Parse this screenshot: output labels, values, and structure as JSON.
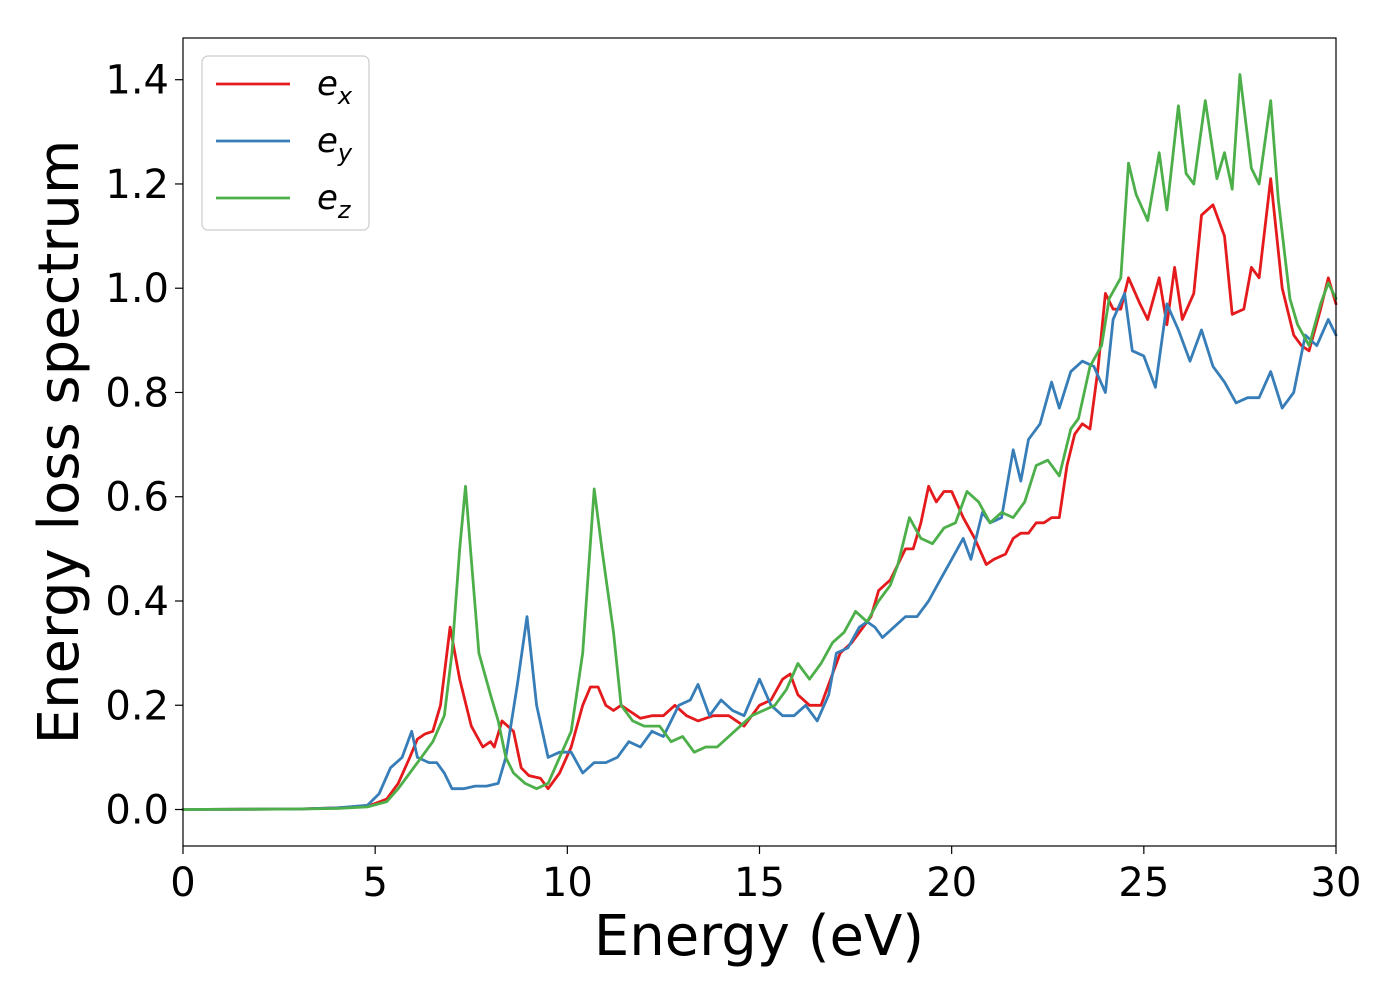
{
  "chart_data": {
    "type": "line",
    "title": "",
    "xlabel": "Energy (eV)",
    "ylabel": "Energy loss spectrum",
    "xlim": [
      0,
      30
    ],
    "ylim": [
      -0.07,
      1.48
    ],
    "xticks": [
      0,
      5,
      10,
      15,
      20,
      25,
      30
    ],
    "xtick_labels": [
      "0",
      "5",
      "10",
      "15",
      "20",
      "25",
      "30"
    ],
    "yticks": [
      0.0,
      0.2,
      0.4,
      0.6,
      0.8,
      1.0,
      1.2,
      1.4
    ],
    "ytick_labels": [
      "0.0",
      "0.2",
      "0.4",
      "0.6",
      "0.8",
      "1.0",
      "1.2",
      "1.4"
    ],
    "grid": false,
    "legend_position": "top-left",
    "series": [
      {
        "name": "e_x",
        "legend_base": "e",
        "legend_sub": "x",
        "color": "#e41a1c",
        "points": [
          [
            0,
            0
          ],
          [
            3,
            0.001
          ],
          [
            4,
            0.003
          ],
          [
            4.8,
            0.006
          ],
          [
            5.3,
            0.02
          ],
          [
            5.6,
            0.05
          ],
          [
            5.9,
            0.1
          ],
          [
            6.1,
            0.135
          ],
          [
            6.3,
            0.145
          ],
          [
            6.5,
            0.15
          ],
          [
            6.7,
            0.2
          ],
          [
            6.95,
            0.35
          ],
          [
            7.2,
            0.25
          ],
          [
            7.5,
            0.16
          ],
          [
            7.8,
            0.12
          ],
          [
            8.0,
            0.13
          ],
          [
            8.1,
            0.12
          ],
          [
            8.3,
            0.17
          ],
          [
            8.6,
            0.15
          ],
          [
            8.8,
            0.08
          ],
          [
            9.0,
            0.065
          ],
          [
            9.3,
            0.06
          ],
          [
            9.5,
            0.04
          ],
          [
            9.8,
            0.07
          ],
          [
            10.1,
            0.12
          ],
          [
            10.4,
            0.2
          ],
          [
            10.6,
            0.235
          ],
          [
            10.8,
            0.235
          ],
          [
            11.0,
            0.2
          ],
          [
            11.2,
            0.19
          ],
          [
            11.4,
            0.2
          ],
          [
            11.6,
            0.19
          ],
          [
            11.9,
            0.175
          ],
          [
            12.2,
            0.18
          ],
          [
            12.5,
            0.18
          ],
          [
            12.8,
            0.2
          ],
          [
            13.1,
            0.18
          ],
          [
            13.4,
            0.17
          ],
          [
            13.8,
            0.18
          ],
          [
            14.2,
            0.18
          ],
          [
            14.6,
            0.16
          ],
          [
            15.0,
            0.2
          ],
          [
            15.3,
            0.21
          ],
          [
            15.6,
            0.25
          ],
          [
            15.8,
            0.26
          ],
          [
            16.0,
            0.22
          ],
          [
            16.3,
            0.2
          ],
          [
            16.6,
            0.2
          ],
          [
            16.9,
            0.26
          ],
          [
            17.1,
            0.3
          ],
          [
            17.4,
            0.32
          ],
          [
            17.6,
            0.34
          ],
          [
            17.9,
            0.37
          ],
          [
            18.1,
            0.42
          ],
          [
            18.4,
            0.44
          ],
          [
            18.6,
            0.47
          ],
          [
            18.8,
            0.5
          ],
          [
            19.0,
            0.5
          ],
          [
            19.2,
            0.55
          ],
          [
            19.4,
            0.62
          ],
          [
            19.6,
            0.59
          ],
          [
            19.8,
            0.61
          ],
          [
            20.0,
            0.61
          ],
          [
            20.3,
            0.56
          ],
          [
            20.6,
            0.52
          ],
          [
            20.9,
            0.47
          ],
          [
            21.1,
            0.48
          ],
          [
            21.4,
            0.49
          ],
          [
            21.6,
            0.52
          ],
          [
            21.8,
            0.53
          ],
          [
            22.0,
            0.53
          ],
          [
            22.2,
            0.55
          ],
          [
            22.4,
            0.55
          ],
          [
            22.6,
            0.56
          ],
          [
            22.8,
            0.56
          ],
          [
            23.0,
            0.66
          ],
          [
            23.2,
            0.72
          ],
          [
            23.4,
            0.74
          ],
          [
            23.6,
            0.73
          ],
          [
            23.8,
            0.84
          ],
          [
            24.0,
            0.99
          ],
          [
            24.2,
            0.96
          ],
          [
            24.4,
            0.96
          ],
          [
            24.6,
            1.02
          ],
          [
            24.9,
            0.97
          ],
          [
            25.1,
            0.94
          ],
          [
            25.4,
            1.02
          ],
          [
            25.6,
            0.93
          ],
          [
            25.8,
            1.04
          ],
          [
            26.0,
            0.94
          ],
          [
            26.3,
            0.99
          ],
          [
            26.5,
            1.14
          ],
          [
            26.8,
            1.16
          ],
          [
            27.1,
            1.1
          ],
          [
            27.3,
            0.95
          ],
          [
            27.6,
            0.96
          ],
          [
            27.8,
            1.04
          ],
          [
            28.0,
            1.02
          ],
          [
            28.3,
            1.21
          ],
          [
            28.6,
            1.0
          ],
          [
            28.9,
            0.91
          ],
          [
            29.1,
            0.89
          ],
          [
            29.3,
            0.88
          ],
          [
            29.6,
            0.96
          ],
          [
            29.8,
            1.02
          ],
          [
            30.0,
            0.97
          ]
        ]
      },
      {
        "name": "e_y",
        "legend_base": "e",
        "legend_sub": "y",
        "color": "#377eb8",
        "points": [
          [
            0,
            0
          ],
          [
            3,
            0.001
          ],
          [
            4,
            0.003
          ],
          [
            4.8,
            0.008
          ],
          [
            5.1,
            0.03
          ],
          [
            5.4,
            0.08
          ],
          [
            5.7,
            0.1
          ],
          [
            5.95,
            0.15
          ],
          [
            6.1,
            0.1
          ],
          [
            6.4,
            0.09
          ],
          [
            6.6,
            0.09
          ],
          [
            6.8,
            0.07
          ],
          [
            7.0,
            0.04
          ],
          [
            7.3,
            0.04
          ],
          [
            7.6,
            0.045
          ],
          [
            7.9,
            0.045
          ],
          [
            8.2,
            0.05
          ],
          [
            8.4,
            0.1
          ],
          [
            8.7,
            0.24
          ],
          [
            8.95,
            0.37
          ],
          [
            9.2,
            0.2
          ],
          [
            9.5,
            0.1
          ],
          [
            9.8,
            0.11
          ],
          [
            10.1,
            0.11
          ],
          [
            10.4,
            0.07
          ],
          [
            10.7,
            0.09
          ],
          [
            11.0,
            0.09
          ],
          [
            11.3,
            0.1
          ],
          [
            11.6,
            0.13
          ],
          [
            11.9,
            0.12
          ],
          [
            12.2,
            0.15
          ],
          [
            12.5,
            0.14
          ],
          [
            12.9,
            0.2
          ],
          [
            13.2,
            0.21
          ],
          [
            13.4,
            0.24
          ],
          [
            13.7,
            0.18
          ],
          [
            14.0,
            0.21
          ],
          [
            14.3,
            0.19
          ],
          [
            14.6,
            0.18
          ],
          [
            15.0,
            0.25
          ],
          [
            15.3,
            0.2
          ],
          [
            15.6,
            0.18
          ],
          [
            15.9,
            0.18
          ],
          [
            16.2,
            0.2
          ],
          [
            16.5,
            0.17
          ],
          [
            16.8,
            0.22
          ],
          [
            17.0,
            0.3
          ],
          [
            17.3,
            0.31
          ],
          [
            17.6,
            0.35
          ],
          [
            17.8,
            0.36
          ],
          [
            18.0,
            0.35
          ],
          [
            18.2,
            0.33
          ],
          [
            18.5,
            0.35
          ],
          [
            18.8,
            0.37
          ],
          [
            19.1,
            0.37
          ],
          [
            19.4,
            0.4
          ],
          [
            19.7,
            0.44
          ],
          [
            20.0,
            0.48
          ],
          [
            20.3,
            0.52
          ],
          [
            20.5,
            0.48
          ],
          [
            20.8,
            0.57
          ],
          [
            21.0,
            0.55
          ],
          [
            21.3,
            0.56
          ],
          [
            21.6,
            0.69
          ],
          [
            21.8,
            0.63
          ],
          [
            22.0,
            0.71
          ],
          [
            22.3,
            0.74
          ],
          [
            22.6,
            0.82
          ],
          [
            22.8,
            0.77
          ],
          [
            23.1,
            0.84
          ],
          [
            23.4,
            0.86
          ],
          [
            23.7,
            0.85
          ],
          [
            24.0,
            0.8
          ],
          [
            24.2,
            0.94
          ],
          [
            24.5,
            0.99
          ],
          [
            24.7,
            0.88
          ],
          [
            25.0,
            0.87
          ],
          [
            25.3,
            0.81
          ],
          [
            25.6,
            0.97
          ],
          [
            25.9,
            0.92
          ],
          [
            26.2,
            0.86
          ],
          [
            26.5,
            0.92
          ],
          [
            26.8,
            0.85
          ],
          [
            27.1,
            0.82
          ],
          [
            27.4,
            0.78
          ],
          [
            27.7,
            0.79
          ],
          [
            28.0,
            0.79
          ],
          [
            28.3,
            0.84
          ],
          [
            28.6,
            0.77
          ],
          [
            28.9,
            0.8
          ],
          [
            29.2,
            0.91
          ],
          [
            29.5,
            0.89
          ],
          [
            29.8,
            0.94
          ],
          [
            30.0,
            0.91
          ]
        ]
      },
      {
        "name": "e_z",
        "legend_base": "e",
        "legend_sub": "z",
        "color": "#4daf4a",
        "points": [
          [
            0,
            0
          ],
          [
            3,
            0.001
          ],
          [
            4,
            0.002
          ],
          [
            4.8,
            0.005
          ],
          [
            5.3,
            0.015
          ],
          [
            5.6,
            0.04
          ],
          [
            5.9,
            0.07
          ],
          [
            6.2,
            0.1
          ],
          [
            6.5,
            0.13
          ],
          [
            6.8,
            0.18
          ],
          [
            7.0,
            0.3
          ],
          [
            7.2,
            0.5
          ],
          [
            7.35,
            0.62
          ],
          [
            7.5,
            0.48
          ],
          [
            7.7,
            0.3
          ],
          [
            8.0,
            0.22
          ],
          [
            8.2,
            0.17
          ],
          [
            8.4,
            0.1
          ],
          [
            8.6,
            0.07
          ],
          [
            8.9,
            0.05
          ],
          [
            9.2,
            0.04
          ],
          [
            9.5,
            0.05
          ],
          [
            9.8,
            0.1
          ],
          [
            10.1,
            0.15
          ],
          [
            10.4,
            0.3
          ],
          [
            10.7,
            0.615
          ],
          [
            10.9,
            0.5
          ],
          [
            11.2,
            0.34
          ],
          [
            11.4,
            0.2
          ],
          [
            11.7,
            0.17
          ],
          [
            12.0,
            0.16
          ],
          [
            12.4,
            0.16
          ],
          [
            12.7,
            0.13
          ],
          [
            13.0,
            0.14
          ],
          [
            13.3,
            0.11
          ],
          [
            13.6,
            0.12
          ],
          [
            13.9,
            0.12
          ],
          [
            14.2,
            0.14
          ],
          [
            14.5,
            0.16
          ],
          [
            14.8,
            0.18
          ],
          [
            15.1,
            0.19
          ],
          [
            15.4,
            0.2
          ],
          [
            15.7,
            0.23
          ],
          [
            16.0,
            0.28
          ],
          [
            16.3,
            0.25
          ],
          [
            16.6,
            0.28
          ],
          [
            16.9,
            0.32
          ],
          [
            17.2,
            0.34
          ],
          [
            17.5,
            0.38
          ],
          [
            17.8,
            0.36
          ],
          [
            18.1,
            0.4
          ],
          [
            18.4,
            0.43
          ],
          [
            18.6,
            0.47
          ],
          [
            18.9,
            0.56
          ],
          [
            19.2,
            0.52
          ],
          [
            19.5,
            0.51
          ],
          [
            19.8,
            0.54
          ],
          [
            20.1,
            0.55
          ],
          [
            20.4,
            0.61
          ],
          [
            20.7,
            0.59
          ],
          [
            21.0,
            0.55
          ],
          [
            21.3,
            0.57
          ],
          [
            21.6,
            0.56
          ],
          [
            21.9,
            0.59
          ],
          [
            22.2,
            0.66
          ],
          [
            22.5,
            0.67
          ],
          [
            22.8,
            0.64
          ],
          [
            23.1,
            0.73
          ],
          [
            23.3,
            0.75
          ],
          [
            23.6,
            0.85
          ],
          [
            23.9,
            0.89
          ],
          [
            24.1,
            0.98
          ],
          [
            24.4,
            1.02
          ],
          [
            24.6,
            1.24
          ],
          [
            24.8,
            1.18
          ],
          [
            25.1,
            1.13
          ],
          [
            25.4,
            1.26
          ],
          [
            25.6,
            1.15
          ],
          [
            25.9,
            1.35
          ],
          [
            26.1,
            1.22
          ],
          [
            26.3,
            1.2
          ],
          [
            26.6,
            1.36
          ],
          [
            26.9,
            1.21
          ],
          [
            27.1,
            1.26
          ],
          [
            27.3,
            1.19
          ],
          [
            27.5,
            1.41
          ],
          [
            27.8,
            1.23
          ],
          [
            28.0,
            1.2
          ],
          [
            28.3,
            1.36
          ],
          [
            28.5,
            1.17
          ],
          [
            28.8,
            0.98
          ],
          [
            29.0,
            0.93
          ],
          [
            29.3,
            0.89
          ],
          [
            29.6,
            0.97
          ],
          [
            29.8,
            1.01
          ],
          [
            30.0,
            0.98
          ]
        ]
      }
    ]
  }
}
